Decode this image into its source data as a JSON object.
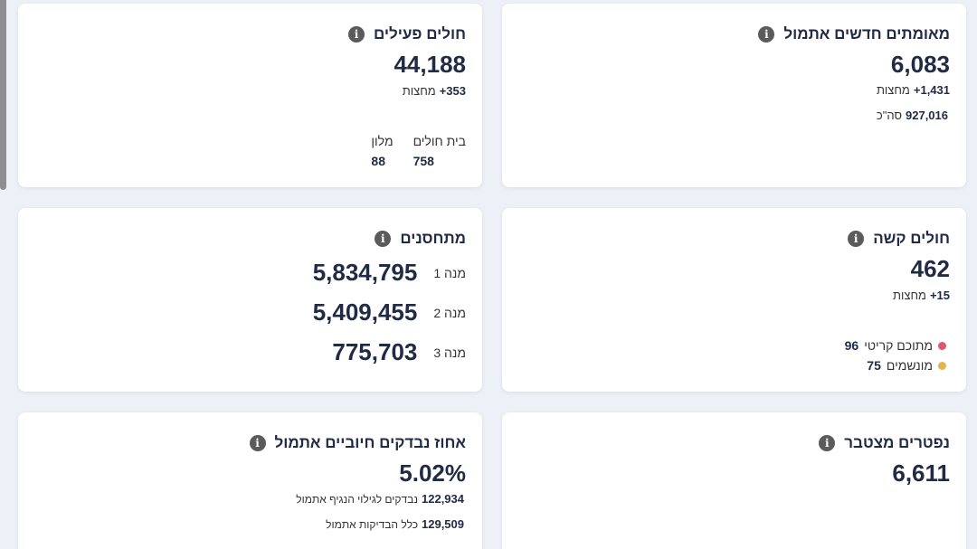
{
  "colors": {
    "background": "#edf1f7",
    "critical_dot": "#e0566c",
    "ventilated_dot": "#e3b34f",
    "text": "#222b45"
  },
  "cards": {
    "new_confirmed": {
      "title": "מאומתים חדשים אתמול",
      "value": "6,083",
      "since_midnight_value": "+1,431",
      "since_midnight_label": "מחצות",
      "total_value": "927,016",
      "total_label": "סה\"כ",
      "info_icon": "i"
    },
    "active": {
      "title": "חולים פעילים",
      "value": "44,188",
      "since_midnight_value": "+353",
      "since_midnight_label": "מחצות",
      "hospital_label": "בית חולים",
      "hospital_value": "758",
      "hotel_label": "מלון",
      "hotel_value": "88",
      "info_icon": "i"
    },
    "severe": {
      "title": "חולים קשה",
      "value": "462",
      "since_midnight_value": "+15",
      "since_midnight_label": "מחצות",
      "critical_label": "מתוכם קריטי",
      "critical_value": "96",
      "ventilated_label": "מונשמים",
      "ventilated_value": "75",
      "info_icon": "i"
    },
    "vaccinated": {
      "title": "מתחסנים",
      "dose1_label": "מנה 1",
      "dose1_value": "5,834,795",
      "dose2_label": "מנה 2",
      "dose2_value": "5,409,455",
      "dose3_label": "מנה 3",
      "dose3_value": "775,703",
      "info_icon": "i"
    },
    "deceased": {
      "title": "נפטרים מצטבר",
      "value": "6,611",
      "info_icon": "i"
    },
    "positive_pct": {
      "title": "אחוז נבדקים חיוביים אתמול",
      "value": "5.02%",
      "tested_value": "122,934",
      "tested_label": "נבדקים לגילוי הנגיף אתמול",
      "all_tests_value": "129,509",
      "all_tests_label": "כלל הבדיקות אתמול",
      "info_icon": "i"
    }
  }
}
